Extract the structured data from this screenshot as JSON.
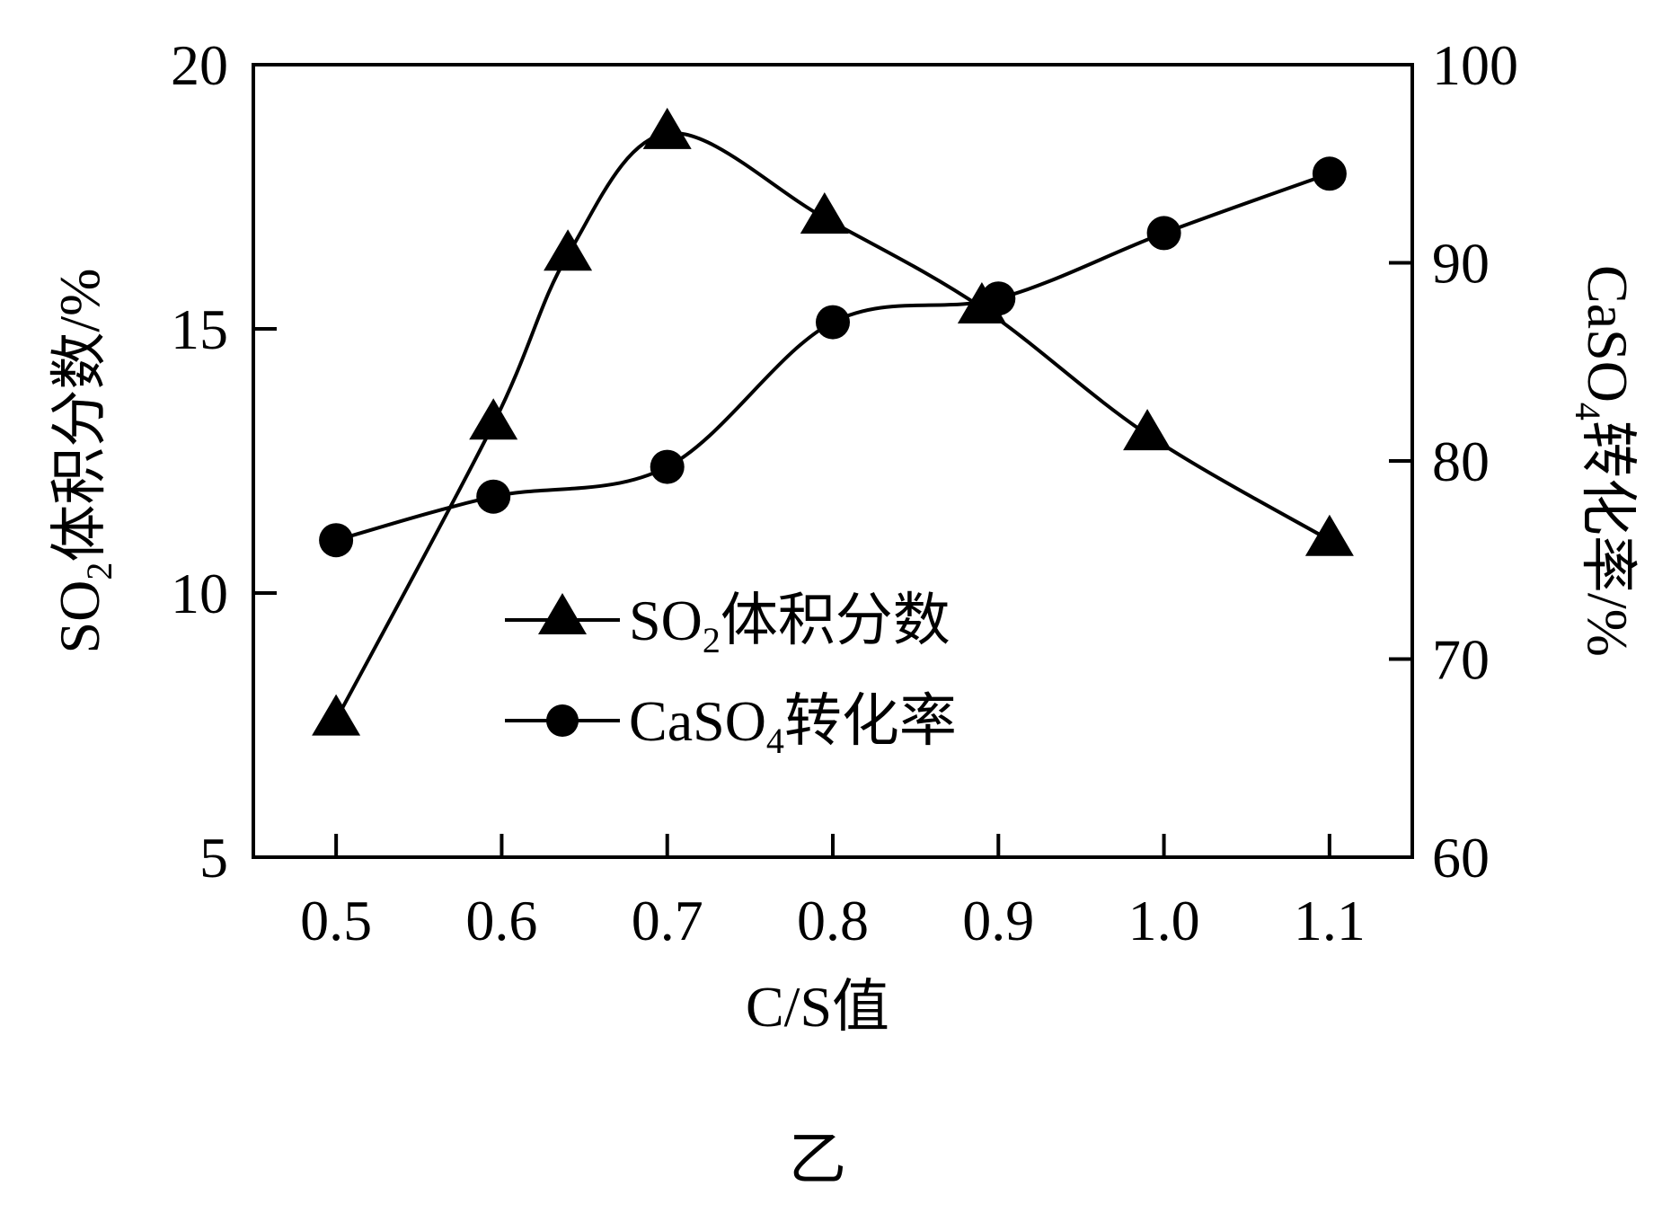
{
  "chart_data": {
    "type": "line",
    "xlabel": "C/S值",
    "ylabel_left": {
      "main": "SO",
      "sub": "2",
      "rest": "体积分数/%"
    },
    "ylabel_right": {
      "main": "CaSO",
      "sub": "4",
      "rest": "转化率/%"
    },
    "xlim": [
      0.45,
      1.15
    ],
    "xticks": [
      0.5,
      0.6,
      0.7,
      0.8,
      0.9,
      1.0,
      1.1
    ],
    "xtick_labels": [
      "0.5",
      "0.6",
      "0.7",
      "0.8",
      "0.9",
      "1.0",
      "1.1"
    ],
    "ylim_left": [
      5,
      20
    ],
    "yticks_left": [
      5,
      10,
      15,
      20
    ],
    "ytick_labels_left": [
      "5",
      "10",
      "15",
      "20"
    ],
    "ylim_right": [
      60,
      100
    ],
    "yticks_right": [
      60,
      70,
      80,
      90,
      100
    ],
    "ytick_labels_right": [
      "60",
      "70",
      "80",
      "90",
      "100"
    ],
    "grid": false,
    "legend_position": "center",
    "series": [
      {
        "name": {
          "main": "SO",
          "sub": "2",
          "rest": "体积分数"
        },
        "axis": "left",
        "marker": "triangle",
        "x": [
          0.5,
          0.595,
          0.64,
          0.7,
          0.795,
          0.89,
          0.99,
          1.1
        ],
        "y": [
          7.6,
          13.2,
          16.4,
          18.7,
          17.1,
          15.4,
          13.0,
          11.0
        ]
      },
      {
        "name": {
          "main": "CaSO",
          "sub": "4",
          "rest": "转化率"
        },
        "axis": "right",
        "marker": "circle",
        "x": [
          0.5,
          0.595,
          0.7,
          0.8,
          0.9,
          1.0,
          1.1
        ],
        "y": [
          76.0,
          78.2,
          79.7,
          87.0,
          88.2,
          91.5,
          94.5
        ]
      }
    ],
    "caption": "乙"
  }
}
